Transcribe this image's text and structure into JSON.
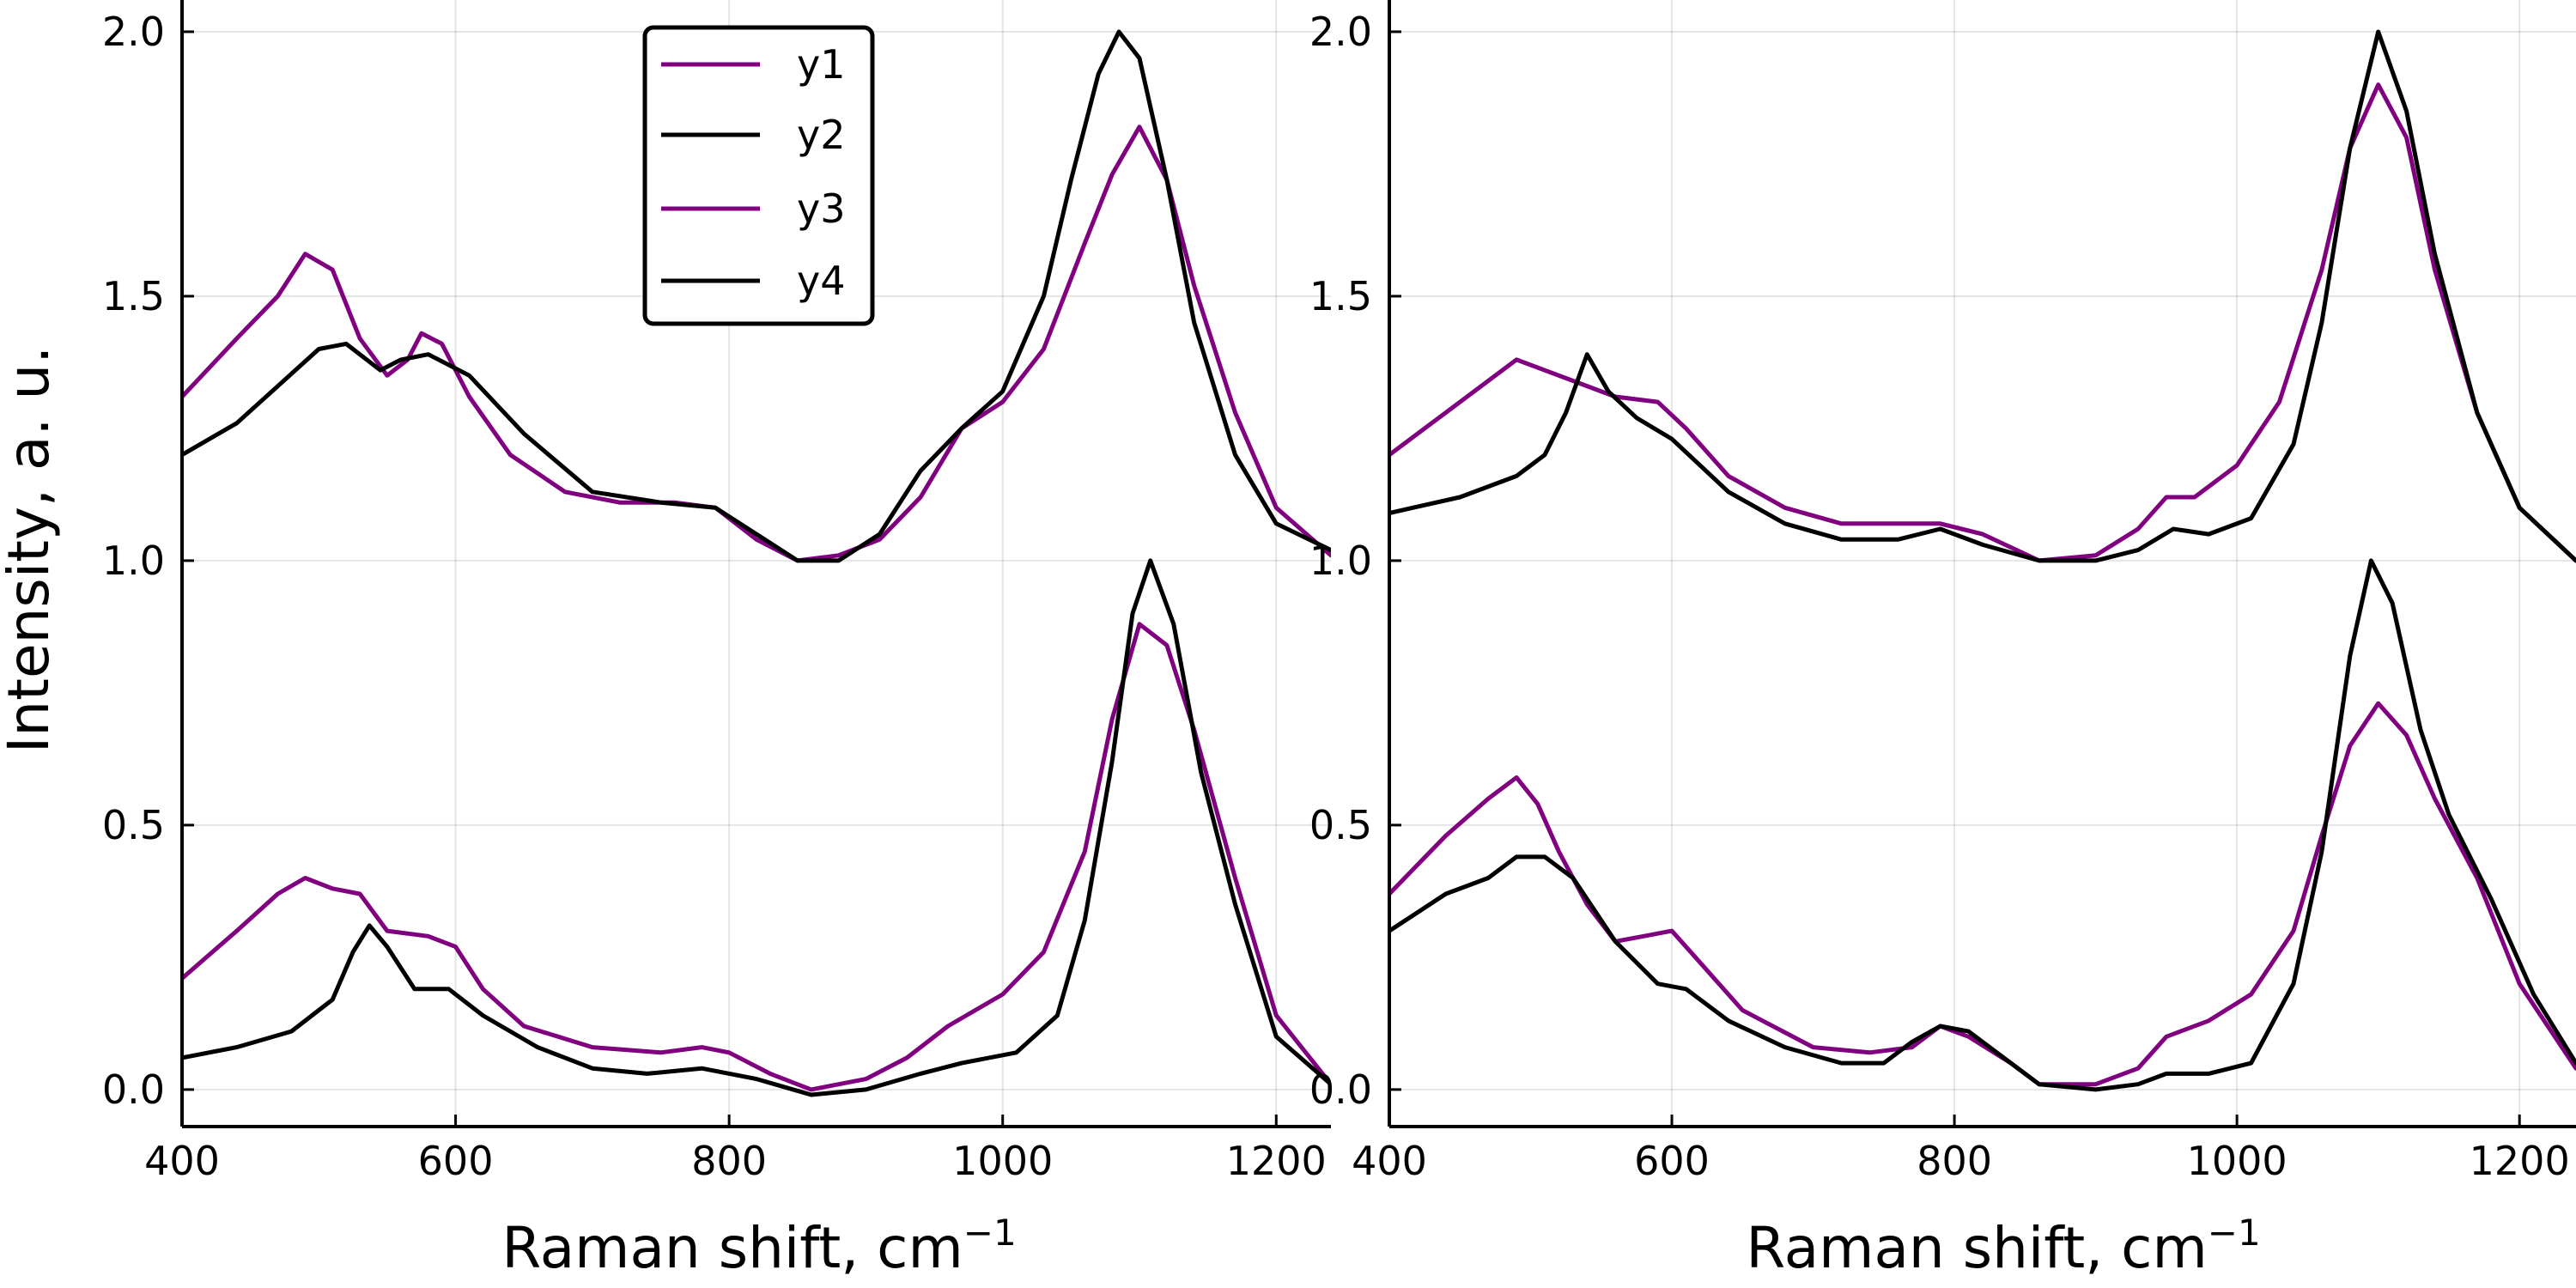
{
  "figure": {
    "ylabel": "Intensity, a. u.",
    "xlabel_prefix": "Raman shift, cm",
    "xlabel_superscript": "−1"
  },
  "colors": {
    "purple": "#800080",
    "black": "#000000"
  },
  "legend": {
    "placement": "top-center of left panel",
    "entries": [
      {
        "label": "y1",
        "color": "#800080"
      },
      {
        "label": "y2",
        "color": "#000000"
      },
      {
        "label": "y3",
        "color": "#800080"
      },
      {
        "label": "y4",
        "color": "#000000"
      }
    ]
  },
  "chart_data": [
    {
      "type": "line",
      "xlabel": "Raman shift, cm−1",
      "ylabel": "Intensity, a. u.",
      "xlim": [
        400,
        1240
      ],
      "ylim": [
        -0.07,
        2.06
      ],
      "grid": true,
      "xticks": [
        "400",
        "600",
        "800",
        "1000",
        "1200"
      ],
      "yticks": [
        "0.0",
        "0.5",
        "1.0",
        "1.5",
        "2.0"
      ],
      "series": [
        {
          "name": "y1",
          "color": "#800080",
          "x": [
            400,
            440,
            470,
            490,
            510,
            530,
            550,
            565,
            575,
            590,
            610,
            640,
            680,
            720,
            760,
            790,
            820,
            850,
            880,
            910,
            940,
            970,
            1000,
            1030,
            1060,
            1080,
            1100,
            1120,
            1140,
            1170,
            1200,
            1240
          ],
          "y": [
            1.31,
            1.42,
            1.5,
            1.58,
            1.55,
            1.42,
            1.35,
            1.38,
            1.43,
            1.41,
            1.31,
            1.2,
            1.13,
            1.11,
            1.11,
            1.1,
            1.04,
            1.0,
            1.01,
            1.04,
            1.12,
            1.25,
            1.3,
            1.4,
            1.6,
            1.73,
            1.82,
            1.72,
            1.52,
            1.28,
            1.1,
            1.01
          ]
        },
        {
          "name": "y2",
          "color": "#000000",
          "x": [
            400,
            440,
            470,
            500,
            520,
            545,
            560,
            580,
            610,
            650,
            700,
            750,
            790,
            820,
            850,
            880,
            910,
            940,
            970,
            1000,
            1030,
            1050,
            1070,
            1085,
            1100,
            1120,
            1140,
            1170,
            1200,
            1240
          ],
          "y": [
            1.2,
            1.26,
            1.33,
            1.4,
            1.41,
            1.36,
            1.38,
            1.39,
            1.35,
            1.24,
            1.13,
            1.11,
            1.1,
            1.05,
            1.0,
            1.0,
            1.05,
            1.17,
            1.25,
            1.32,
            1.5,
            1.72,
            1.92,
            2.0,
            1.95,
            1.72,
            1.45,
            1.2,
            1.07,
            1.02
          ]
        },
        {
          "name": "y3",
          "color": "#800080",
          "x": [
            400,
            440,
            470,
            490,
            510,
            530,
            550,
            580,
            600,
            620,
            650,
            700,
            750,
            780,
            800,
            830,
            860,
            900,
            930,
            960,
            1000,
            1030,
            1060,
            1080,
            1100,
            1120,
            1140,
            1170,
            1200,
            1240
          ],
          "y": [
            0.21,
            0.3,
            0.37,
            0.4,
            0.38,
            0.37,
            0.3,
            0.29,
            0.27,
            0.19,
            0.12,
            0.08,
            0.07,
            0.08,
            0.07,
            0.03,
            0.0,
            0.02,
            0.06,
            0.12,
            0.18,
            0.26,
            0.45,
            0.7,
            0.88,
            0.84,
            0.68,
            0.4,
            0.14,
            0.01
          ]
        },
        {
          "name": "y4",
          "color": "#000000",
          "x": [
            400,
            440,
            480,
            510,
            525,
            537,
            550,
            570,
            595,
            620,
            660,
            700,
            740,
            780,
            820,
            860,
            900,
            940,
            970,
            1010,
            1040,
            1060,
            1080,
            1095,
            1108,
            1125,
            1145,
            1170,
            1200,
            1240
          ],
          "y": [
            0.06,
            0.08,
            0.11,
            0.17,
            0.26,
            0.31,
            0.27,
            0.19,
            0.19,
            0.14,
            0.08,
            0.04,
            0.03,
            0.04,
            0.02,
            -0.01,
            0.0,
            0.03,
            0.05,
            0.07,
            0.14,
            0.32,
            0.62,
            0.9,
            1.0,
            0.88,
            0.6,
            0.35,
            0.1,
            0.01
          ]
        }
      ]
    },
    {
      "type": "line",
      "xlabel": "Raman shift, cm−1",
      "ylabel": "",
      "xlim": [
        400,
        1240
      ],
      "ylim": [
        -0.07,
        2.06
      ],
      "grid": true,
      "xticks": [
        "400",
        "600",
        "800",
        "1000",
        "1200"
      ],
      "yticks": [
        "0.0",
        "0.5",
        "1.0",
        "1.5",
        "2.0"
      ],
      "series": [
        {
          "name": "y1",
          "color": "#800080",
          "x": [
            400,
            440,
            470,
            490,
            510,
            530,
            560,
            590,
            610,
            640,
            680,
            720,
            760,
            790,
            820,
            860,
            900,
            930,
            950,
            970,
            1000,
            1030,
            1060,
            1080,
            1100,
            1120,
            1140,
            1170,
            1200,
            1240
          ],
          "y": [
            1.2,
            1.28,
            1.34,
            1.38,
            1.36,
            1.34,
            1.31,
            1.3,
            1.25,
            1.16,
            1.1,
            1.07,
            1.07,
            1.07,
            1.05,
            1.0,
            1.01,
            1.06,
            1.12,
            1.12,
            1.18,
            1.3,
            1.55,
            1.78,
            1.9,
            1.8,
            1.55,
            1.28,
            1.1,
            1.0
          ]
        },
        {
          "name": "y2",
          "color": "#000000",
          "x": [
            400,
            450,
            490,
            510,
            525,
            540,
            555,
            575,
            600,
            640,
            680,
            720,
            760,
            790,
            820,
            860,
            900,
            930,
            955,
            980,
            1010,
            1040,
            1060,
            1080,
            1100,
            1120,
            1140,
            1170,
            1200,
            1240
          ],
          "y": [
            1.09,
            1.12,
            1.16,
            1.2,
            1.28,
            1.39,
            1.32,
            1.27,
            1.23,
            1.13,
            1.07,
            1.04,
            1.04,
            1.06,
            1.03,
            1.0,
            1.0,
            1.02,
            1.06,
            1.05,
            1.08,
            1.22,
            1.45,
            1.78,
            2.0,
            1.85,
            1.58,
            1.28,
            1.1,
            1.0
          ]
        },
        {
          "name": "y3",
          "color": "#800080",
          "x": [
            400,
            440,
            470,
            490,
            505,
            520,
            540,
            560,
            580,
            600,
            620,
            650,
            700,
            740,
            770,
            790,
            810,
            840,
            860,
            900,
            930,
            950,
            980,
            1010,
            1040,
            1060,
            1080,
            1100,
            1120,
            1140,
            1170,
            1200,
            1240
          ],
          "y": [
            0.37,
            0.48,
            0.55,
            0.59,
            0.54,
            0.45,
            0.35,
            0.28,
            0.29,
            0.3,
            0.24,
            0.15,
            0.08,
            0.07,
            0.08,
            0.12,
            0.1,
            0.05,
            0.01,
            0.01,
            0.04,
            0.1,
            0.13,
            0.18,
            0.3,
            0.48,
            0.65,
            0.73,
            0.67,
            0.55,
            0.4,
            0.2,
            0.04
          ]
        },
        {
          "name": "y4",
          "color": "#000000",
          "x": [
            400,
            440,
            470,
            490,
            510,
            530,
            560,
            590,
            610,
            640,
            680,
            720,
            750,
            770,
            790,
            810,
            840,
            860,
            900,
            930,
            950,
            980,
            1010,
            1040,
            1060,
            1080,
            1095,
            1110,
            1130,
            1150,
            1180,
            1210,
            1240
          ],
          "y": [
            0.3,
            0.37,
            0.4,
            0.44,
            0.44,
            0.4,
            0.28,
            0.2,
            0.19,
            0.13,
            0.08,
            0.05,
            0.05,
            0.09,
            0.12,
            0.11,
            0.05,
            0.01,
            0.0,
            0.01,
            0.03,
            0.03,
            0.05,
            0.2,
            0.45,
            0.82,
            1.0,
            0.92,
            0.68,
            0.52,
            0.36,
            0.18,
            0.05
          ]
        }
      ]
    }
  ]
}
